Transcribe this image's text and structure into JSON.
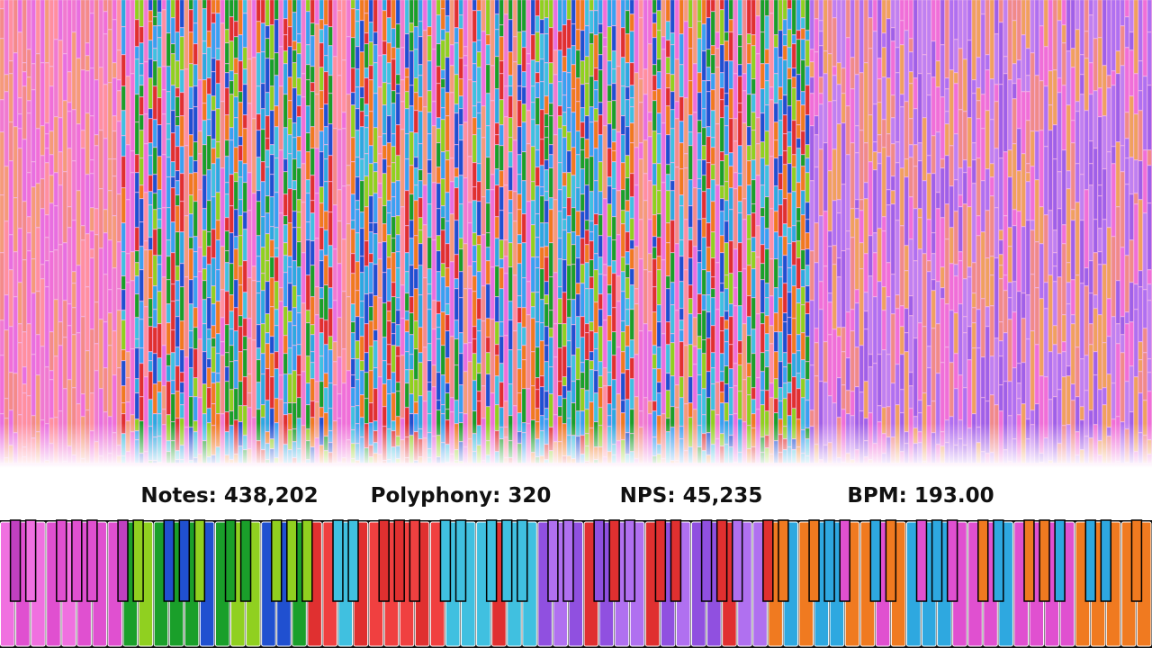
{
  "stats": [
    {
      "label": "Notes:",
      "value": "438,202"
    },
    {
      "label": "Polyphony:",
      "value": "320"
    },
    {
      "label": "NPS:",
      "value": "45,235"
    },
    {
      "label": "BPM:",
      "value": "193.00"
    }
  ]
}
